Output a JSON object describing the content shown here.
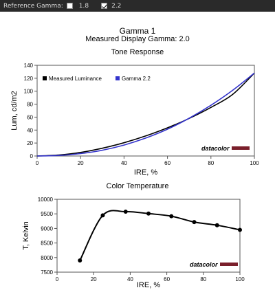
{
  "topbar": {
    "label": "Reference Gamma:",
    "options": [
      {
        "label": "1.8",
        "checked": false
      },
      {
        "label": "2.2",
        "checked": true
      }
    ]
  },
  "header": {
    "title": "Gamma 1",
    "subtitle": "Measured Display Gamma: 2.0"
  },
  "watermark": "datacolor",
  "colors": {
    "measured": "#000000",
    "reference": "#3333cc",
    "watermark_bar": "#7a1f2b"
  },
  "chart_data": [
    {
      "type": "line",
      "title": "Tone Response",
      "xlabel": "IRE, %",
      "ylabel": "Lum, cd/m2",
      "xlim": [
        0,
        100
      ],
      "ylim": [
        0,
        140
      ],
      "xticks": [
        0,
        20,
        40,
        60,
        80,
        100
      ],
      "yticks": [
        0,
        20,
        40,
        60,
        80,
        100,
        120,
        140
      ],
      "legend": "top-left",
      "grid": false,
      "series": [
        {
          "name": "Measured Luminance",
          "color": "#000000",
          "x": [
            0,
            10,
            20,
            30,
            40,
            50,
            60,
            70,
            80,
            90,
            100
          ],
          "y": [
            0,
            1.5,
            5.5,
            12,
            20.5,
            31,
            43.5,
            58,
            75,
            95,
            128
          ]
        },
        {
          "name": "Gamma 2.2",
          "color": "#3333cc",
          "x": [
            0,
            10,
            20,
            30,
            40,
            50,
            60,
            70,
            80,
            90,
            100
          ],
          "y": [
            0,
            0.8,
            3.7,
            8.9,
            16.9,
            27.7,
            41.4,
            58.3,
            78.3,
            101.4,
            128
          ]
        }
      ]
    },
    {
      "type": "line",
      "title": "Color Temperature",
      "xlabel": "IRE, %",
      "ylabel": "T, Kelvin",
      "xlim": [
        0,
        100
      ],
      "ylim": [
        7500,
        10000
      ],
      "xticks": [
        0,
        20,
        40,
        60,
        80,
        100
      ],
      "yticks": [
        7500,
        8000,
        8500,
        9000,
        9500,
        10000
      ],
      "grid": false,
      "series": [
        {
          "color": "#000000",
          "x": [
            12.5,
            25,
            37.5,
            50,
            62.5,
            75,
            87.5,
            100
          ],
          "y": [
            7900,
            9450,
            9575,
            9510,
            9420,
            9220,
            9110,
            8950
          ]
        }
      ]
    }
  ]
}
